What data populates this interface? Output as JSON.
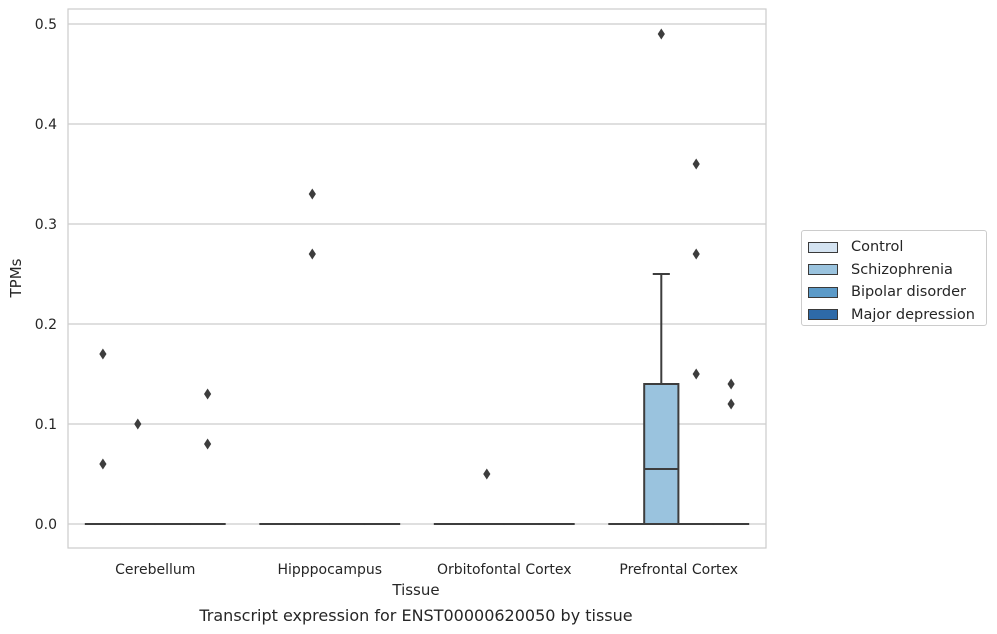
{
  "chart_data": {
    "type": "box",
    "xlabel": "Tissue",
    "ylabel": "TPMs",
    "caption": "Transcript expression for ENST00000620050 by tissue",
    "ylim": [
      -0.024,
      0.515
    ],
    "yticks": [
      0.0,
      0.1,
      0.2,
      0.3,
      0.4,
      0.5
    ],
    "ytick_labels": [
      "0.0",
      "0.1",
      "0.2",
      "0.3",
      "0.4",
      "0.5"
    ],
    "grid": "horizontal",
    "legend_position": "right",
    "categories": [
      "Cerebellum",
      "Hipppocampus",
      "Orbitofontal Cortex",
      "Prefrontal Cortex"
    ],
    "series": [
      {
        "name": "Control",
        "color": "#d4e3f1",
        "boxes": [
          {
            "min": 0,
            "q1": 0,
            "median": 0,
            "q3": 0,
            "max": 0,
            "outliers": [
              0.17,
              0.06
            ]
          },
          {
            "min": 0,
            "q1": 0,
            "median": 0,
            "q3": 0,
            "max": 0,
            "outliers": []
          },
          {
            "min": 0,
            "q1": 0,
            "median": 0,
            "q3": 0,
            "max": 0,
            "outliers": []
          },
          {
            "min": 0,
            "q1": 0,
            "median": 0,
            "q3": 0,
            "max": 0,
            "outliers": []
          }
        ]
      },
      {
        "name": "Schizophrenia",
        "color": "#9ac3de",
        "boxes": [
          {
            "min": 0,
            "q1": 0,
            "median": 0,
            "q3": 0,
            "max": 0,
            "outliers": [
              0.1
            ]
          },
          {
            "min": 0,
            "q1": 0,
            "median": 0,
            "q3": 0,
            "max": 0,
            "outliers": [
              0.33,
              0.27
            ]
          },
          {
            "min": 0,
            "q1": 0,
            "median": 0,
            "q3": 0,
            "max": 0,
            "outliers": [
              0.05
            ]
          },
          {
            "min": 0,
            "q1": 0,
            "median": 0.055,
            "q3": 0.14,
            "max": 0.25,
            "outliers": [
              0.49
            ]
          }
        ]
      },
      {
        "name": "Bipolar disorder",
        "color": "#5b9ac8",
        "boxes": [
          {
            "min": 0,
            "q1": 0,
            "median": 0,
            "q3": 0,
            "max": 0,
            "outliers": []
          },
          {
            "min": 0,
            "q1": 0,
            "median": 0,
            "q3": 0,
            "max": 0,
            "outliers": []
          },
          {
            "min": 0,
            "q1": 0,
            "median": 0,
            "q3": 0,
            "max": 0,
            "outliers": []
          },
          {
            "min": 0,
            "q1": 0,
            "median": 0,
            "q3": 0,
            "max": 0,
            "outliers": [
              0.36,
              0.27,
              0.15
            ]
          }
        ]
      },
      {
        "name": "Major depression",
        "color": "#2e6aa8",
        "boxes": [
          {
            "min": 0,
            "q1": 0,
            "median": 0,
            "q3": 0,
            "max": 0,
            "outliers": [
              0.13,
              0.08
            ]
          },
          {
            "min": 0,
            "q1": 0,
            "median": 0,
            "q3": 0,
            "max": 0,
            "outliers": []
          },
          {
            "min": 0,
            "q1": 0,
            "median": 0,
            "q3": 0,
            "max": 0,
            "outliers": []
          },
          {
            "min": 0,
            "q1": 0,
            "median": 0,
            "q3": 0,
            "max": 0,
            "outliers": [
              0.14,
              0.12
            ]
          }
        ]
      }
    ]
  }
}
